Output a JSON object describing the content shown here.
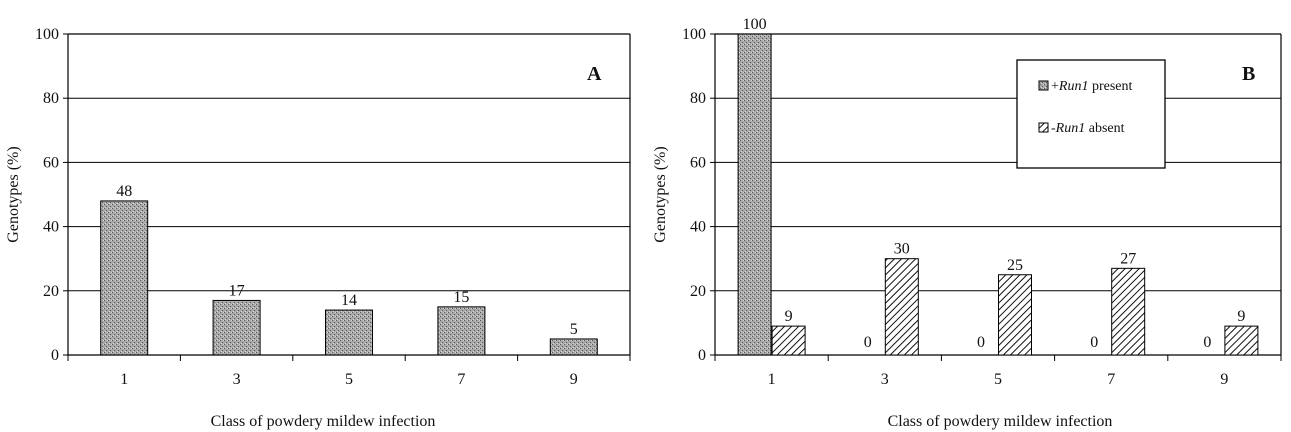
{
  "chart_data": [
    {
      "type": "bar",
      "panel_label": "A",
      "categories": [
        "1",
        "3",
        "5",
        "7",
        "9"
      ],
      "series": [
        {
          "values": [
            48,
            17,
            14,
            15,
            5
          ],
          "labels": [
            "48",
            "17",
            "14",
            "15",
            "5"
          ],
          "pattern": "stipple"
        }
      ],
      "xlabel": "Class of powdery mildew infection",
      "ylabel": "Genotypes (%)",
      "ylim": [
        0,
        100
      ],
      "yticks": [
        "0",
        "20",
        "40",
        "60",
        "80",
        "100"
      ],
      "grid": true,
      "legend": null
    },
    {
      "type": "bar",
      "panel_label": "B",
      "categories": [
        "1",
        "3",
        "5",
        "7",
        "9"
      ],
      "series": [
        {
          "name_prefix": "+",
          "name_italic": "Run1",
          "name_suffix": " present",
          "values": [
            100,
            0,
            0,
            0,
            0
          ],
          "labels": [
            "100",
            "0",
            "0",
            "0",
            "0"
          ],
          "pattern": "stipple"
        },
        {
          "name_prefix": "-",
          "name_italic": "Run1",
          "name_suffix": " absent",
          "values": [
            9,
            30,
            25,
            27,
            9
          ],
          "labels": [
            "9",
            "30",
            "25",
            "27",
            "9"
          ],
          "pattern": "hatch"
        }
      ],
      "xlabel": "Class of powdery mildew infection",
      "ylabel": "Genotypes (%)",
      "ylim": [
        0,
        100
      ],
      "yticks": [
        "0",
        "20",
        "40",
        "60",
        "80",
        "100"
      ],
      "grid": true,
      "legend": "top-right"
    }
  ]
}
